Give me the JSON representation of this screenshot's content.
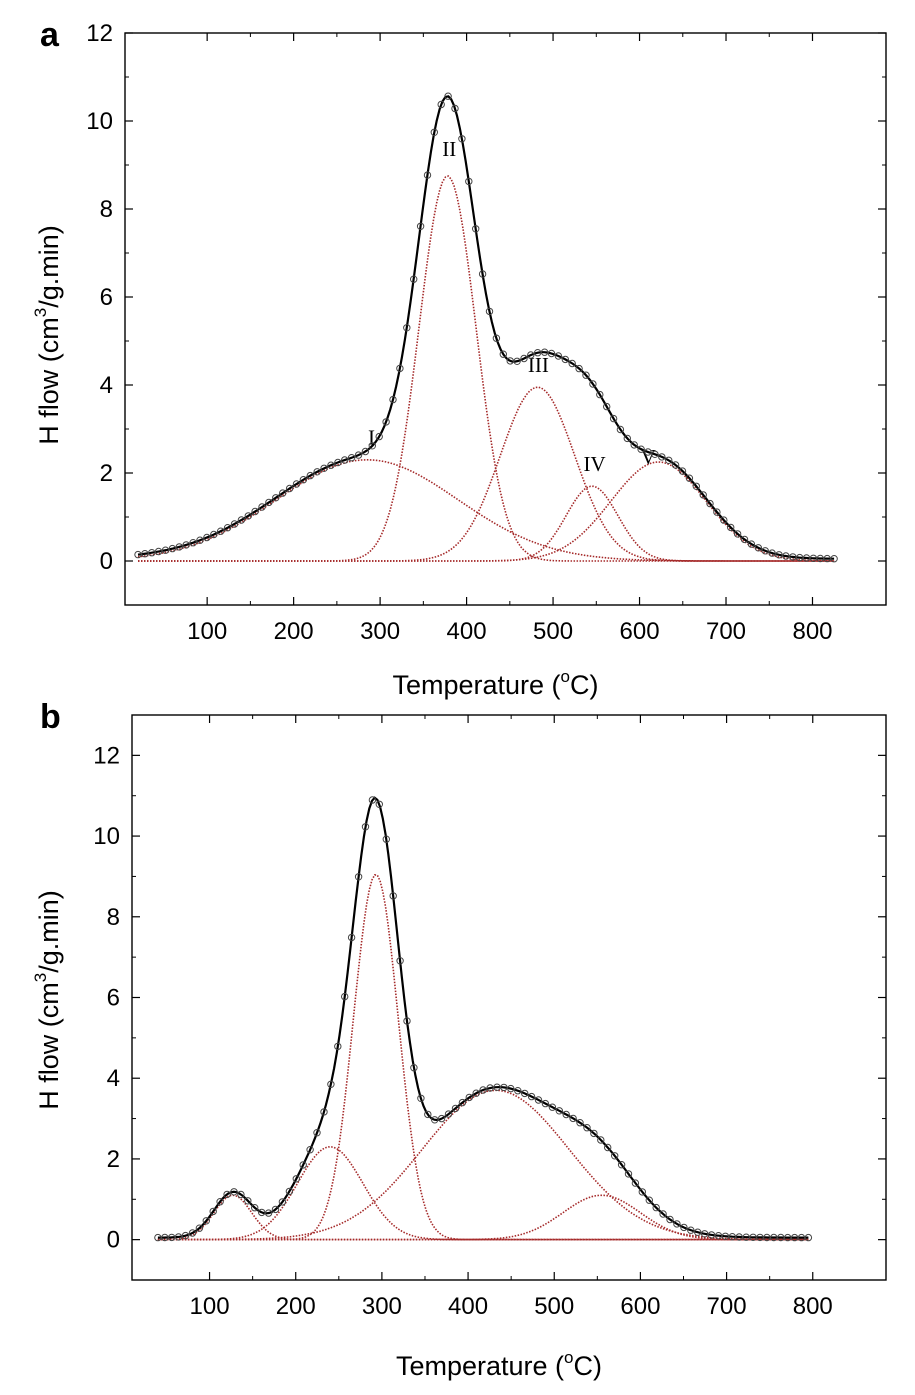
{
  "chart_data": [
    {
      "panel": "a",
      "type": "line",
      "xlabel": "Temperature (",
      "xlabel_sup": "o",
      "xlabel_end": "C)",
      "ylabel": "H flow (cm",
      "ylabel_sup": "3",
      "ylabel_end": "/g.min)",
      "xlim": [
        5,
        885
      ],
      "ylim": [
        -1,
        12
      ],
      "xticks": [
        100,
        200,
        300,
        400,
        500,
        600,
        700,
        800
      ],
      "yticks": [
        0,
        2,
        4,
        6,
        8,
        10,
        12
      ],
      "x_start": 20,
      "x_end": 825,
      "baseline": 0.05,
      "peaks": [
        {
          "label": "I",
          "center": 285,
          "height": 2.3,
          "width": 105,
          "label_x": 290,
          "label_y": 2.65
        },
        {
          "label": "II",
          "center": 378,
          "height": 8.75,
          "width": 33,
          "label_x": 380,
          "label_y": 9.2
        },
        {
          "label": "III",
          "center": 482,
          "height": 3.95,
          "width": 43,
          "label_x": 483,
          "label_y": 4.3
        },
        {
          "label": "IV",
          "center": 545,
          "height": 1.7,
          "width": 30,
          "label_x": 548,
          "label_y": 2.05
        },
        {
          "label": "V",
          "center": 622,
          "height": 2.25,
          "width": 55,
          "label_x": 610,
          "label_y": 2.2
        }
      ]
    },
    {
      "panel": "b",
      "type": "line",
      "xlabel": "Temperature (",
      "xlabel_sup": "o",
      "xlabel_end": "C)",
      "ylabel": "H flow (cm",
      "ylabel_sup": "3",
      "ylabel_end": "/g.min)",
      "xlim": [
        10,
        885
      ],
      "ylim": [
        -1,
        13
      ],
      "xticks": [
        100,
        200,
        300,
        400,
        500,
        600,
        700,
        800
      ],
      "yticks": [
        0,
        2,
        4,
        6,
        8,
        10,
        12
      ],
      "x_start": 40,
      "x_end": 795,
      "baseline": 0.05,
      "peaks": [
        {
          "label": "",
          "center": 127,
          "height": 1.1,
          "width": 22
        },
        {
          "label": "",
          "center": 240,
          "height": 2.3,
          "width": 38
        },
        {
          "label": "",
          "center": 293,
          "height": 9.05,
          "width": 26
        },
        {
          "label": "",
          "center": 432,
          "height": 3.7,
          "width": 85
        },
        {
          "label": "",
          "center": 555,
          "height": 1.1,
          "width": 45
        }
      ]
    }
  ],
  "colors": {
    "envelope": "#000000",
    "components": "#a52a2a",
    "markers": "#444444",
    "axes": "#000000"
  }
}
